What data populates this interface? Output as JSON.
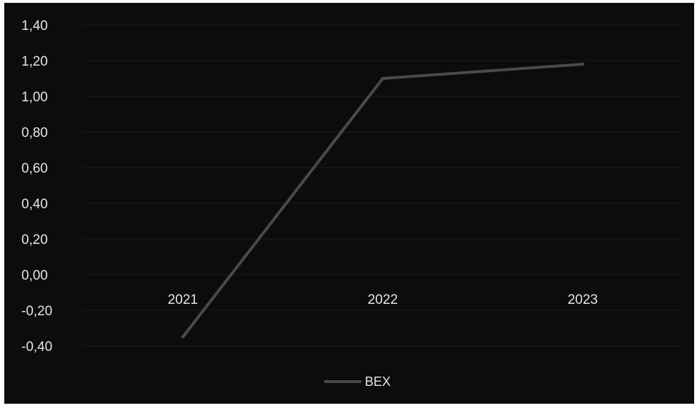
{
  "chart_data": {
    "type": "line",
    "categories": [
      "2021",
      "2022",
      "2023"
    ],
    "series": [
      {
        "name": "BEX",
        "values": [
          -0.35,
          1.1,
          1.18
        ],
        "color": "#4a4a4a"
      }
    ],
    "ylim": [
      -0.4,
      1.4
    ],
    "yticks": [
      "1,40",
      "1,20",
      "1,00",
      "0,80",
      "0,60",
      "0,40",
      "0,20",
      "0,00",
      "-0,20",
      "-0,40"
    ],
    "grid": true,
    "legend_position": "bottom",
    "background": "#0c0c0c"
  }
}
